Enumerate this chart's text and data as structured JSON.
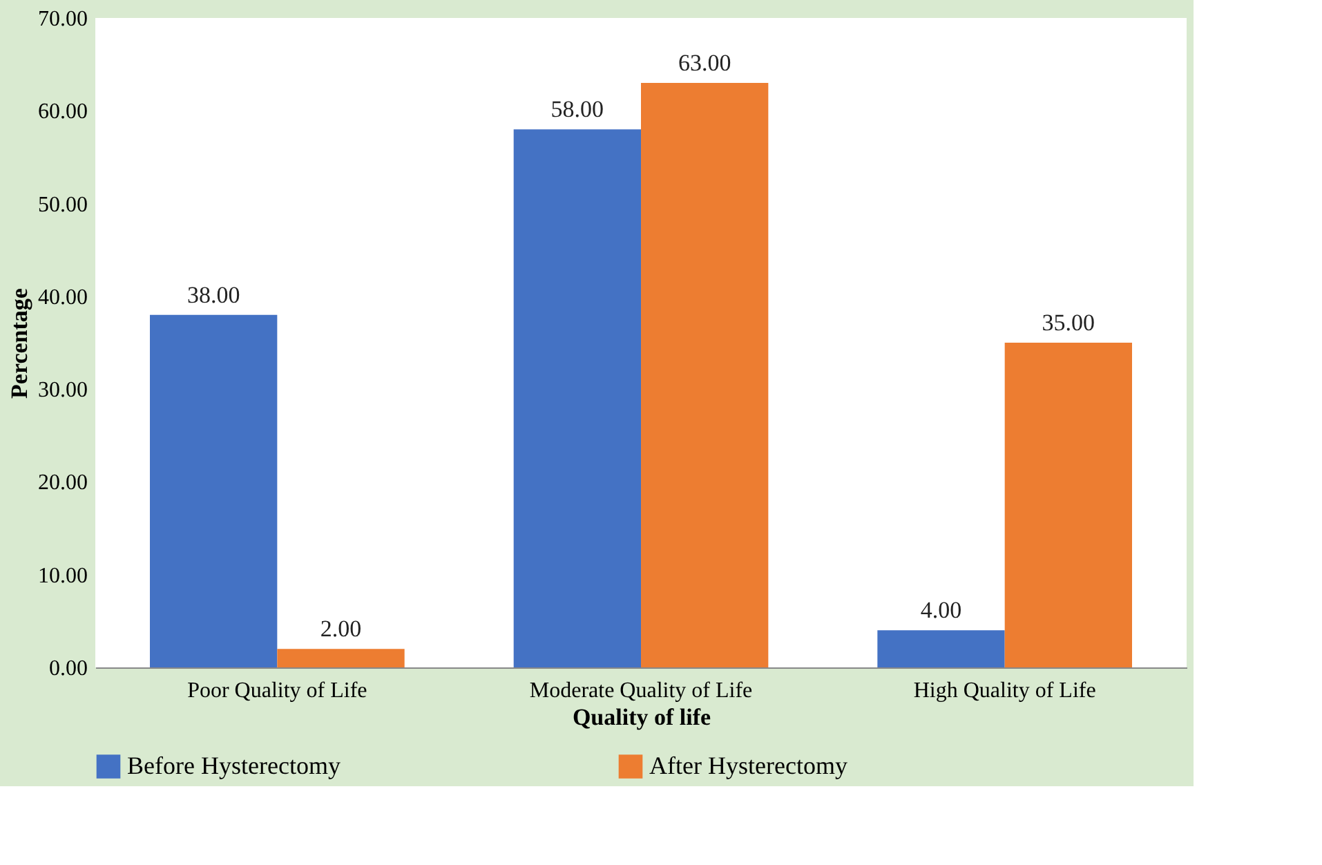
{
  "chart_data": {
    "type": "bar",
    "xlabel": "Quality of life",
    "ylabel": "Percentage",
    "categories": [
      "Poor Quality of Life",
      "Moderate Quality of Life",
      "High Quality of Life"
    ],
    "series": [
      {
        "name": "Before Hysterectomy",
        "color": "#4472c4",
        "values": [
          38,
          58,
          4
        ],
        "value_labels": [
          "38.00",
          "58.00",
          "4.00"
        ]
      },
      {
        "name": "After Hysterectomy",
        "color": "#ed7d31",
        "values": [
          2,
          63,
          35
        ],
        "value_labels": [
          "2.00",
          "63.00",
          "35.00"
        ]
      }
    ],
    "ylim": [
      0,
      70
    ],
    "yticks": [
      {
        "value": 0,
        "label": "0.00"
      },
      {
        "value": 10,
        "label": "10.00"
      },
      {
        "value": 20,
        "label": "20.00"
      },
      {
        "value": 30,
        "label": "30.00"
      },
      {
        "value": 40,
        "label": "40.00"
      },
      {
        "value": 50,
        "label": "50.00"
      },
      {
        "value": 60,
        "label": "60.00"
      },
      {
        "value": 70,
        "label": "70.00"
      }
    ],
    "grid": false,
    "legend": "bottom"
  }
}
